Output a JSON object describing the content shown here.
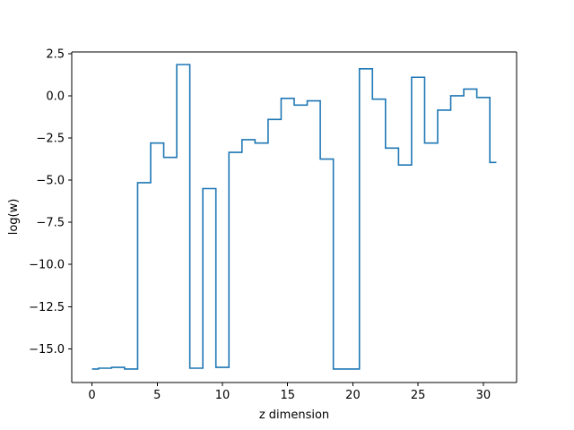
{
  "chart_data": {
    "type": "line",
    "drawstyle": "steps-mid",
    "title": "",
    "xlabel": "z dimension",
    "ylabel": "log(w)",
    "xlim": [
      -1.55,
      32.55
    ],
    "ylim": [
      -17.0,
      2.6
    ],
    "xticks": [
      0,
      5,
      10,
      15,
      20,
      25,
      30
    ],
    "xtick_labels": [
      "0",
      "5",
      "10",
      "15",
      "20",
      "25",
      "30"
    ],
    "yticks": [
      2.5,
      0.0,
      -2.5,
      -5.0,
      -7.5,
      -10.0,
      -12.5,
      -15.0
    ],
    "ytick_labels": [
      "2.5",
      "0.0",
      "−2.5",
      "−5.0",
      "−7.5",
      "−10.0",
      "−12.5",
      "−15.0"
    ],
    "grid": false,
    "legend": "none",
    "series": [
      {
        "color": "#1f77b4",
        "x": [
          0,
          1,
          2,
          3,
          4,
          5,
          6,
          7,
          8,
          9,
          10,
          11,
          12,
          13,
          14,
          15,
          16,
          17,
          18,
          19,
          20,
          21,
          22,
          23,
          24,
          25,
          26,
          27,
          28,
          29,
          30,
          31
        ],
        "y": [
          -16.2,
          -16.15,
          -16.1,
          -16.2,
          -5.15,
          -2.8,
          -3.65,
          1.85,
          -16.15,
          -5.5,
          -16.1,
          -3.35,
          -2.6,
          -2.8,
          -1.4,
          -0.15,
          -0.55,
          -0.3,
          -3.75,
          -16.2,
          -16.2,
          1.6,
          -0.2,
          -3.1,
          -4.1,
          1.1,
          -2.8,
          -0.85,
          0.0,
          0.4,
          -0.1,
          -3.95
        ]
      }
    ]
  }
}
